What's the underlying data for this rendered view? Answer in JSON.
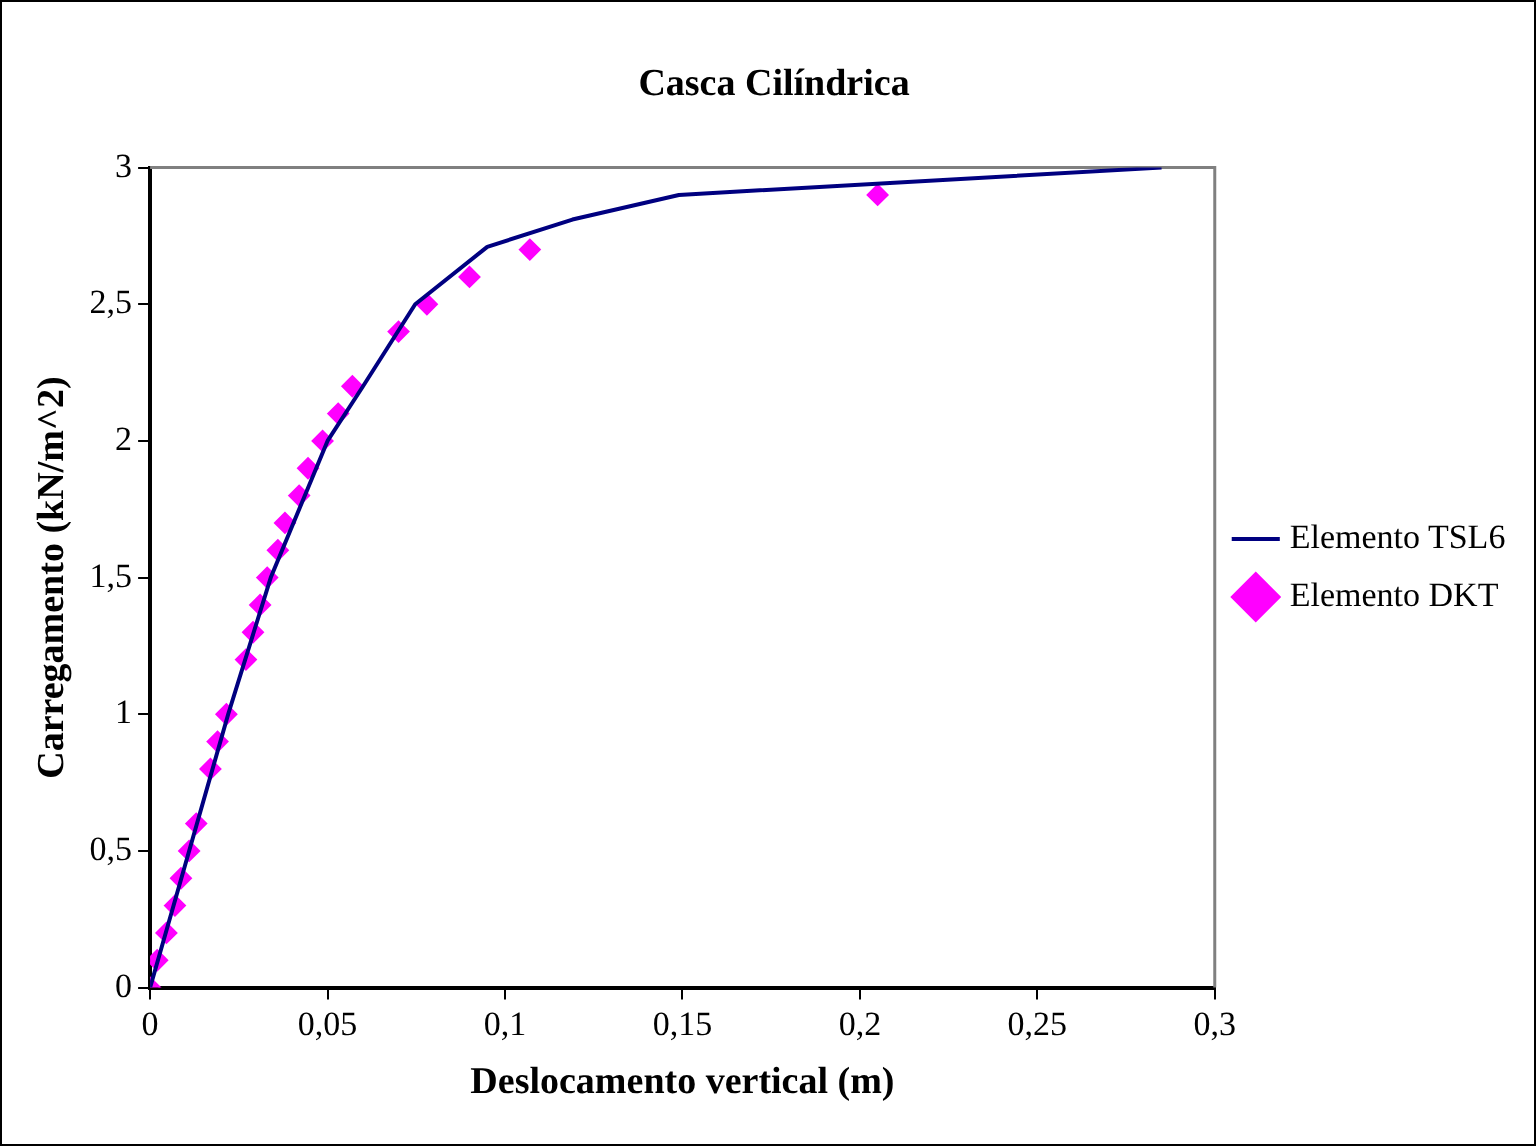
{
  "chart_data": {
    "type": "line",
    "title": "Casca Cilíndrica",
    "xlabel": "Deslocamento vertical (m)",
    "ylabel": "Carregamento (kN/m^2)",
    "xlim": [
      0,
      0.3
    ],
    "xticks": [
      0,
      {
        "value": 0.05,
        "label": "0,05"
      },
      {
        "value": 0.1,
        "label": "0,1"
      },
      {
        "value": 0.15,
        "label": "0,15"
      },
      {
        "value": 0.2,
        "label": "0,2"
      },
      {
        "value": 0.25,
        "label": "0,25"
      },
      {
        "value": 0.3,
        "label": "0,3"
      }
    ],
    "ylim": [
      0,
      3
    ],
    "yticks": [
      0,
      {
        "value": 0.5,
        "label": "0,5"
      },
      1,
      {
        "value": 1.5,
        "label": "1,5"
      },
      2,
      {
        "value": 2.5,
        "label": "2,5"
      },
      3
    ],
    "grid": false,
    "legend": "right",
    "series": [
      {
        "name": "Elemento TSL6",
        "color": "#000080",
        "marker": "none",
        "line_style": "solid",
        "x": [
          0,
          0.011,
          0.022,
          0.034,
          0.05,
          0.06,
          0.0747,
          0.095,
          0.119,
          0.149,
          0.285
        ],
        "values": [
          0,
          0.5,
          1,
          1.5,
          2,
          2.2,
          2.5,
          2.71,
          2.81,
          2.9,
          3
        ]
      },
      {
        "name": "Elemento DKT",
        "type": "scatter",
        "color": "#ff00ff",
        "marker": "diamond",
        "x": [
          0,
          0.002,
          0.0046,
          0.007,
          0.0087,
          0.011,
          0.013,
          0.017,
          0.019,
          0.0215,
          0.027,
          0.029,
          0.031,
          0.033,
          0.036,
          0.038,
          0.042,
          0.0445,
          0.0486,
          0.053,
          0.057,
          0.07,
          0.078,
          0.09,
          0.107,
          0.205
        ],
        "values": [
          0,
          0.1,
          0.2,
          0.3,
          0.4,
          0.5,
          0.6,
          0.8,
          0.9,
          1.0,
          1.2,
          1.3,
          1.4,
          1.5,
          1.6,
          1.7,
          1.8,
          1.9,
          2.0,
          2.1,
          2.2,
          2.4,
          2.5,
          2.6,
          2.7,
          2.9
        ]
      }
    ]
  }
}
